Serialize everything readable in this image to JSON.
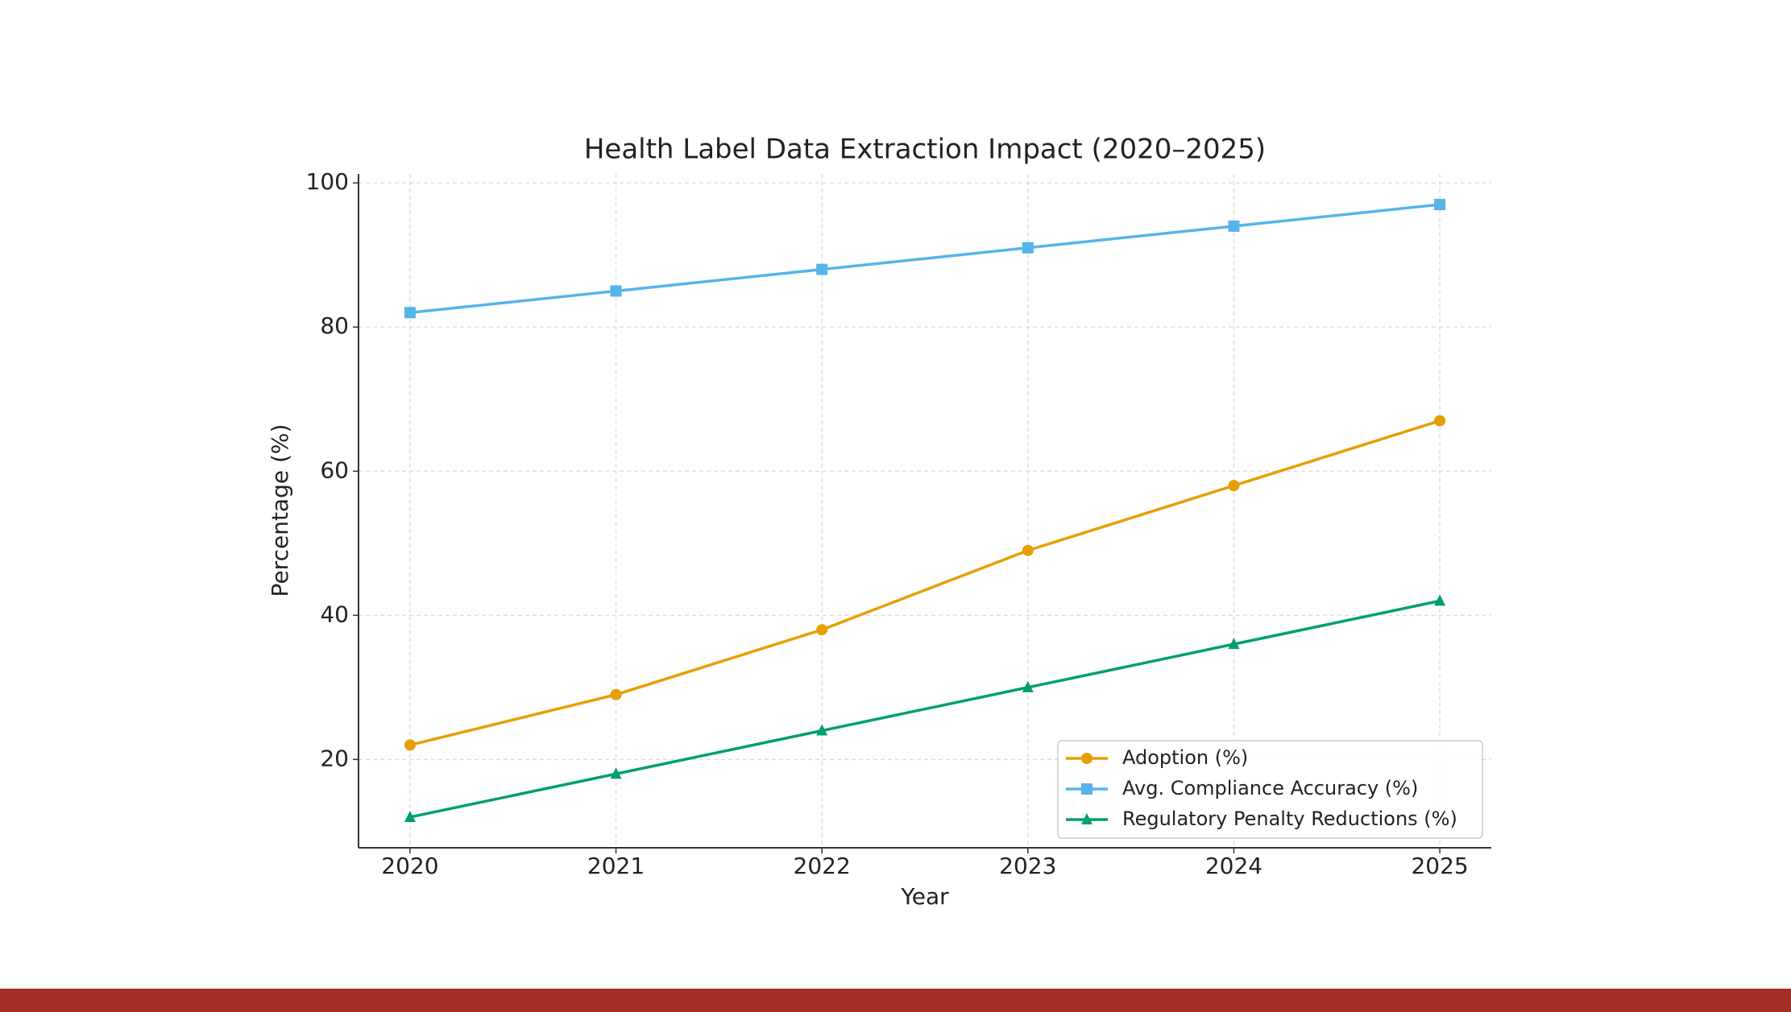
{
  "chart_data": {
    "type": "line",
    "title": "Health Label Data Extraction Impact (2020–2025)",
    "x_label": "Year",
    "y_label": "Percentage (%)",
    "x": [
      2020,
      2021,
      2022,
      2023,
      2024,
      2025
    ],
    "series": [
      {
        "name": "Adoption (%)",
        "color": "#E69F00",
        "marker": "circle",
        "values": [
          22,
          29,
          38,
          49,
          58,
          67
        ]
      },
      {
        "name": "Avg. Compliance Accuracy (%)",
        "color": "#56B4E9",
        "marker": "square",
        "values": [
          82,
          85,
          88,
          91,
          94,
          97
        ]
      },
      {
        "name": "Regulatory Penalty Reductions (%)",
        "color": "#009E73",
        "marker": "triangle",
        "values": [
          12,
          18,
          24,
          30,
          36,
          42
        ]
      }
    ],
    "xlim": [
      2019.75,
      2025.25
    ],
    "xticks": [
      2020,
      2021,
      2022,
      2023,
      2024,
      2025
    ],
    "ylim": [
      7.75,
      101.25
    ],
    "yticks": [
      20,
      40,
      60,
      80,
      100
    ],
    "grid": true,
    "legend": "lower right"
  }
}
